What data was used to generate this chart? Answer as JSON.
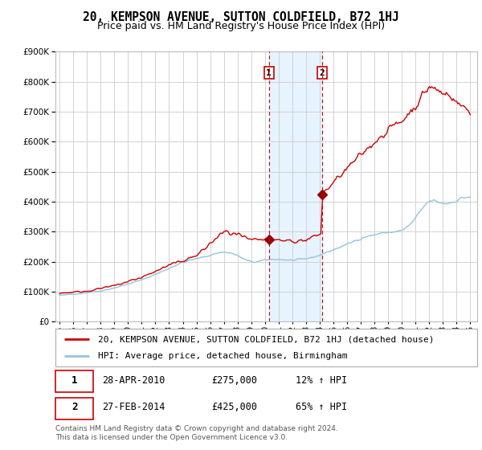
{
  "title": "20, KEMPSON AVENUE, SUTTON COLDFIELD, B72 1HJ",
  "subtitle": "Price paid vs. HM Land Registry's House Price Index (HPI)",
  "hpi_label": "HPI: Average price, detached house, Birmingham",
  "property_label": "20, KEMPSON AVENUE, SUTTON COLDFIELD, B72 1HJ (detached house)",
  "footer": "Contains HM Land Registry data © Crown copyright and database right 2024.\nThis data is licensed under the Open Government Licence v3.0.",
  "sale1_date": "28-APR-2010",
  "sale1_price": 275000,
  "sale1_pct": "12% ↑ HPI",
  "sale1_year": 2010.29,
  "sale2_date": "27-FEB-2014",
  "sale2_price": 425000,
  "sale2_pct": "65% ↑ HPI",
  "sale2_year": 2014.16,
  "ylim": [
    0,
    900000
  ],
  "xlim": [
    1994.7,
    2025.5
  ],
  "yticks": [
    0,
    100000,
    200000,
    300000,
    400000,
    500000,
    600000,
    700000,
    800000,
    900000
  ],
  "xticks": [
    1995,
    1996,
    1997,
    1998,
    1999,
    2000,
    2001,
    2002,
    2003,
    2004,
    2005,
    2006,
    2007,
    2008,
    2009,
    2010,
    2011,
    2012,
    2013,
    2014,
    2015,
    2016,
    2017,
    2018,
    2019,
    2020,
    2021,
    2022,
    2023,
    2024,
    2025
  ],
  "hpi_color": "#92c5de",
  "property_color": "#cc0000",
  "sale_marker_color": "#990000",
  "vline_color": "#cc0000",
  "bg_shade_color": "#ddeeff",
  "grid_color": "#cccccc",
  "title_fontsize": 10.5,
  "subtitle_fontsize": 9,
  "axis_fontsize": 7.5,
  "legend_fontsize": 8,
  "footer_fontsize": 6.5
}
